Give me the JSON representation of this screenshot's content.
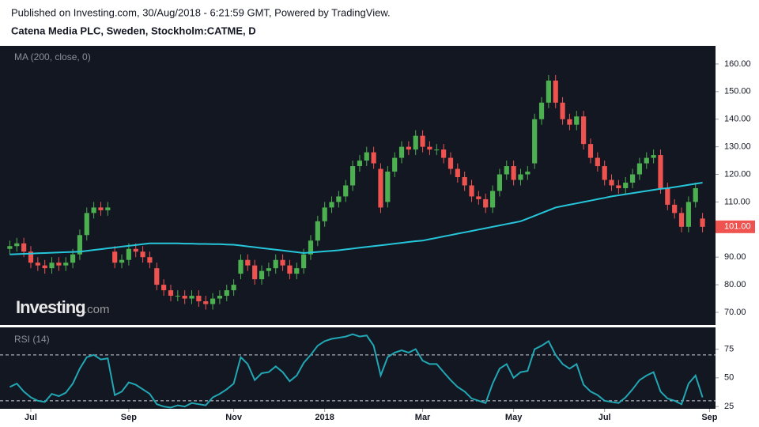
{
  "header": {
    "published": "Published on Investing.com, 30/Aug/2018 - 6:21:59 GMT, Powered by TradingView.",
    "symbol": "Catena Media PLC, Sweden, Stockholm:CATME, D"
  },
  "chart_data": [
    {
      "type": "candlestick",
      "up_color": "#4caf50",
      "down_color": "#ef5350",
      "open": [
        93,
        94,
        95,
        92,
        88,
        87,
        86,
        88,
        87,
        88,
        91,
        98,
        106,
        108,
        107,
        92,
        88,
        89,
        93,
        92,
        90,
        86,
        80,
        78,
        76,
        76,
        75,
        76,
        74,
        73,
        75,
        76,
        78,
        84,
        89,
        87,
        82,
        85,
        86,
        89,
        87,
        84,
        86,
        91,
        96,
        103,
        108,
        110,
        112,
        116,
        123,
        125,
        128,
        122,
        110,
        121,
        126,
        130,
        129,
        134,
        130,
        129,
        129,
        126,
        122,
        119,
        116,
        112,
        111,
        108,
        114,
        120,
        123,
        118,
        120,
        124,
        140,
        146,
        154,
        146,
        140,
        138,
        141,
        131,
        126,
        123,
        118,
        116,
        115,
        117,
        120,
        124,
        126,
        127,
        115,
        109,
        106,
        101,
        110,
        104
      ],
      "high": [
        96,
        97,
        97,
        94,
        90,
        89,
        90,
        90,
        90,
        93,
        100,
        108,
        110,
        110,
        110,
        94,
        91,
        95,
        95,
        94,
        92,
        88,
        82,
        80,
        78,
        78,
        78,
        78,
        76,
        77,
        78,
        80,
        82,
        91,
        91,
        89,
        87,
        88,
        91,
        91,
        89,
        88,
        93,
        98,
        105,
        110,
        112,
        114,
        118,
        125,
        127,
        130,
        130,
        124,
        123,
        128,
        132,
        132,
        136,
        136,
        132,
        131,
        131,
        128,
        124,
        121,
        118,
        114,
        113,
        116,
        122,
        125,
        125,
        122,
        123,
        142,
        148,
        156,
        156,
        148,
        142,
        143,
        143,
        133,
        128,
        125,
        120,
        118,
        119,
        122,
        126,
        128,
        129,
        129,
        117,
        111,
        108,
        112,
        117,
        106
      ],
      "low": [
        91,
        92,
        90,
        86,
        85,
        84,
        84,
        85,
        85,
        86,
        89,
        96,
        104,
        105,
        105,
        86,
        86,
        87,
        90,
        88,
        86,
        78,
        76,
        74,
        74,
        73,
        73,
        72,
        71,
        71,
        73,
        74,
        76,
        82,
        85,
        80,
        80,
        83,
        84,
        85,
        82,
        82,
        84,
        89,
        94,
        101,
        106,
        108,
        110,
        114,
        121,
        123,
        122,
        106,
        108,
        119,
        124,
        127,
        127,
        128,
        127,
        127,
        124,
        120,
        117,
        114,
        110,
        109,
        106,
        106,
        112,
        118,
        116,
        116,
        118,
        122,
        138,
        144,
        144,
        138,
        136,
        136,
        129,
        124,
        121,
        116,
        114,
        113,
        113,
        115,
        118,
        122,
        124,
        113,
        107,
        104,
        99,
        99,
        108,
        99
      ],
      "close": [
        94,
        95,
        92,
        88,
        87,
        86,
        88,
        87,
        88,
        91,
        98,
        106,
        108,
        107,
        108,
        88,
        89,
        93,
        92,
        90,
        88,
        80,
        78,
        76,
        76,
        75,
        76,
        74,
        73,
        75,
        76,
        78,
        80,
        89,
        87,
        82,
        85,
        86,
        89,
        87,
        84,
        86,
        91,
        96,
        103,
        108,
        110,
        112,
        116,
        123,
        125,
        128,
        124,
        108,
        121,
        126,
        130,
        129,
        134,
        130,
        129,
        129,
        126,
        122,
        119,
        116,
        112,
        111,
        108,
        114,
        120,
        123,
        118,
        120,
        121,
        140,
        146,
        154,
        146,
        140,
        138,
        141,
        131,
        126,
        123,
        118,
        116,
        115,
        117,
        120,
        124,
        126,
        127,
        115,
        109,
        106,
        101,
        110,
        115,
        101
      ],
      "series": [
        {
          "name": "MA (200, close, 0)",
          "color": "#26c6da",
          "values": [
            91,
            91.1,
            91.2,
            91.3,
            91.4,
            91.5,
            91.6,
            91.7,
            91.8,
            91.9,
            92,
            92.3,
            92.6,
            92.9,
            93.2,
            93.5,
            93.8,
            94.1,
            94.4,
            94.7,
            95,
            95,
            95,
            95,
            95,
            94.9,
            94.9,
            94.8,
            94.8,
            94.7,
            94.7,
            94.6,
            94.5,
            94.2,
            93.9,
            93.6,
            93.3,
            93,
            92.7,
            92.4,
            92.1,
            91.8,
            91.5,
            91.7,
            91.9,
            92.1,
            92.3,
            92.5,
            92.8,
            93.1,
            93.4,
            93.7,
            94,
            94.3,
            94.6,
            94.9,
            95.2,
            95.5,
            95.8,
            96,
            96.5,
            97,
            97.5,
            98,
            98.5,
            99,
            99.5,
            100,
            100.5,
            101,
            101.5,
            102,
            102.5,
            103,
            104,
            105,
            106,
            107,
            108,
            108.5,
            109,
            109.5,
            110,
            110.5,
            111,
            111.5,
            112,
            112.4,
            112.8,
            113.2,
            113.6,
            114,
            114.4,
            114.8,
            115,
            115.4,
            115.8,
            116.2,
            116.6,
            117
          ]
        }
      ],
      "ylim": [
        65.7,
        166
      ],
      "yticks": [
        {
          "value": 70,
          "label": "70.00"
        },
        {
          "value": 80,
          "label": "80.00"
        },
        {
          "value": 90,
          "label": "90.00"
        },
        {
          "value": 100,
          "label": "100.00"
        },
        {
          "value": 110,
          "label": "110.00"
        },
        {
          "value": 120,
          "label": "120.00"
        },
        {
          "value": 130,
          "label": "130.00"
        },
        {
          "value": 140,
          "label": "140.00"
        },
        {
          "value": 150,
          "label": "150.00"
        },
        {
          "value": 160,
          "label": "160.00"
        }
      ],
      "last_value": {
        "value": 101,
        "label": "101.00"
      },
      "watermark": [
        "Investing",
        ".com"
      ]
    },
    {
      "type": "line",
      "series": [
        {
          "name": "RSI (14)",
          "color": "#22a7b4",
          "values": [
            42,
            45,
            38,
            33,
            30,
            29,
            36,
            34,
            37,
            45,
            58,
            68,
            70,
            66,
            67,
            35,
            38,
            46,
            44,
            40,
            36,
            27,
            25,
            24,
            26,
            25,
            28,
            27,
            26,
            33,
            36,
            40,
            45,
            68,
            62,
            48,
            54,
            55,
            60,
            55,
            47,
            52,
            63,
            70,
            78,
            82,
            84,
            85,
            86,
            88,
            86,
            87,
            78,
            52,
            68,
            72,
            74,
            72,
            75,
            65,
            62,
            62,
            55,
            48,
            42,
            38,
            32,
            30,
            28,
            45,
            58,
            62,
            50,
            55,
            56,
            75,
            78,
            82,
            70,
            62,
            58,
            62,
            44,
            38,
            35,
            30,
            29,
            28,
            33,
            40,
            48,
            52,
            55,
            38,
            32,
            30,
            27,
            45,
            52,
            33
          ]
        }
      ],
      "ylim": [
        23,
        94
      ],
      "yticks": [
        25,
        50,
        75
      ],
      "levels": [
        70,
        30
      ],
      "xticks": [
        {
          "value": 3,
          "label": "Jul"
        },
        {
          "value": 17,
          "label": "Sep"
        },
        {
          "value": 32,
          "label": "Nov"
        },
        {
          "value": 45,
          "label": "2018"
        },
        {
          "value": 59,
          "label": "Mar"
        },
        {
          "value": 72,
          "label": "May"
        },
        {
          "value": 85,
          "label": "Jul"
        },
        {
          "value": 100,
          "label": "Sep"
        }
      ]
    }
  ]
}
